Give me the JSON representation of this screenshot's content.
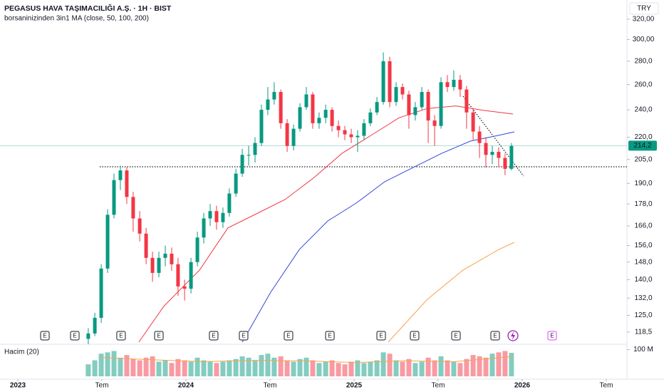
{
  "chart_data": {
    "type": "candlestick",
    "title": "PEGASUS HAVA TAŞIMACILIĞI A.Ş. · 1H · BIST",
    "subtitle": "borsaninizinden 3in1 MA (close, 50, 100, 200)",
    "currency": "TRY",
    "log_scale": true,
    "up_color": "#089981",
    "down_color": "#f23645",
    "xlim": [
      2022.894,
      2026.623
    ],
    "xticks": [
      2023,
      {
        "value": 2023.5,
        "label": "Tem"
      },
      2024,
      {
        "value": 2024.5,
        "label": "Tem"
      },
      2025,
      {
        "value": 2025.5,
        "label": "Tem"
      },
      2026,
      {
        "value": 2026.5,
        "label": "Tem"
      }
    ],
    "ylim": [
      114.8,
      332.5
    ],
    "yticks": [
      {
        "value": 320,
        "label": "320,00"
      },
      {
        "value": 300,
        "label": "300,00"
      },
      {
        "value": 280,
        "label": "280,0"
      },
      {
        "value": 260,
        "label": "260,0"
      },
      {
        "value": 240,
        "label": "240,0"
      },
      {
        "value": 220,
        "label": "220,0"
      },
      {
        "value": 205,
        "label": "205,0"
      },
      {
        "value": 190,
        "label": "190,0"
      },
      {
        "value": 178,
        "label": "178,0"
      },
      {
        "value": 166,
        "label": "166,0"
      },
      {
        "value": 156,
        "label": "156,0"
      },
      {
        "value": 148,
        "label": "148,0"
      },
      {
        "value": 140,
        "label": "140,0"
      },
      {
        "value": 132,
        "label": "132,0"
      },
      {
        "value": 125,
        "label": "125,0"
      },
      {
        "value": 118.5,
        "label": "118,5"
      }
    ],
    "x": [
      2023.419,
      2023.458,
      2023.496,
      2023.534,
      2023.572,
      2023.61,
      2023.648,
      2023.686,
      2023.725,
      2023.763,
      2023.801,
      2023.839,
      2023.877,
      2023.915,
      2023.953,
      2023.992,
      2024.03,
      2024.068,
      2024.106,
      2024.144,
      2024.182,
      2024.22,
      2024.258,
      2024.297,
      2024.335,
      2024.373,
      2024.411,
      2024.449,
      2024.487,
      2024.525,
      2024.564,
      2024.602,
      2024.64,
      2024.678,
      2024.716,
      2024.754,
      2024.792,
      2024.831,
      2024.869,
      2024.907,
      2024.945,
      2024.983,
      2025.021,
      2025.059,
      2025.097,
      2025.136,
      2025.174,
      2025.212,
      2025.25,
      2025.288,
      2025.326,
      2025.364,
      2025.403,
      2025.441,
      2025.479,
      2025.517,
      2025.555,
      2025.593,
      2025.631,
      2025.669,
      2025.708,
      2025.746,
      2025.784,
      2025.822,
      2025.86,
      2025.898,
      2025.936
    ],
    "open": [
      116,
      118,
      124,
      145,
      172,
      192,
      198,
      182,
      170,
      162,
      150,
      143,
      150,
      152,
      147,
      137,
      136,
      148,
      160,
      170,
      174,
      168,
      173,
      184,
      196,
      208,
      208,
      216,
      240,
      248,
      254,
      230,
      214,
      226,
      242,
      252,
      230,
      234,
      240,
      228,
      225,
      222,
      220,
      221,
      230,
      238,
      246,
      280,
      246,
      258,
      252,
      236,
      242,
      254,
      232,
      228,
      262,
      258,
      264,
      256,
      238,
      224,
      216,
      208,
      210,
      206,
      199
    ],
    "high": [
      120,
      126,
      147,
      175,
      196,
      201,
      200,
      185,
      174,
      165,
      153,
      153,
      156,
      155,
      150,
      140,
      150,
      163,
      173,
      178,
      177,
      176,
      187,
      199,
      212,
      214,
      220,
      244,
      258,
      262,
      256,
      233,
      229,
      245,
      258,
      254,
      238,
      244,
      242,
      232,
      228,
      226,
      225,
      233,
      241,
      250,
      288,
      284,
      262,
      261,
      255,
      246,
      258,
      256,
      236,
      266,
      268,
      272,
      268,
      259,
      241,
      228,
      220,
      214,
      213,
      209,
      216
    ],
    "low": [
      114,
      117,
      122,
      143,
      170,
      186,
      178,
      163,
      158,
      147,
      139,
      141,
      146,
      144,
      133,
      131,
      134,
      146,
      157,
      166,
      164,
      165,
      171,
      182,
      194,
      201,
      203,
      214,
      236,
      244,
      226,
      210,
      211,
      224,
      240,
      226,
      226,
      230,
      224,
      220,
      218,
      216,
      210,
      218,
      228,
      236,
      244,
      242,
      243,
      248,
      226,
      232,
      240,
      216,
      214,
      226,
      254,
      255,
      250,
      226,
      218,
      206,
      200,
      202,
      200,
      195,
      198
    ],
    "close": [
      118,
      124,
      145,
      172,
      192,
      198,
      182,
      170,
      162,
      150,
      143,
      150,
      152,
      147,
      137,
      136,
      148,
      160,
      170,
      174,
      168,
      173,
      184,
      196,
      208,
      208,
      216,
      240,
      248,
      254,
      230,
      214,
      226,
      242,
      252,
      230,
      234,
      240,
      228,
      225,
      222,
      220,
      221,
      230,
      238,
      246,
      280,
      246,
      258,
      252,
      236,
      242,
      254,
      232,
      228,
      262,
      258,
      264,
      256,
      238,
      224,
      216,
      208,
      210,
      206,
      199,
      214
    ],
    "moving_averages": [
      {
        "color": "#f23645",
        "x": [
          2023.72,
          2023.869,
          2024.081,
          2024.25,
          2024.419,
          2024.589,
          2024.758,
          2024.928,
          2025.097,
          2025.267,
          2025.436,
          2025.606,
          2025.775,
          2025.945
        ],
        "values": [
          114.8,
          128.7,
          144.3,
          165,
          172.5,
          180.5,
          193.2,
          209,
          221,
          234,
          241,
          243,
          239.5,
          236.8
        ]
      },
      {
        "color": "#3446d4",
        "x": [
          2024.335,
          2024.504,
          2024.674,
          2024.843,
          2025.013,
          2025.182,
          2025.352,
          2025.521,
          2025.691,
          2025.86,
          2025.953
        ],
        "values": [
          114.8,
          134.5,
          154,
          168.6,
          178.5,
          191,
          199.9,
          209,
          217.3,
          221.3,
          223.8
        ]
      },
      {
        "color": "#f7a350",
        "x": [
          2025.203,
          2025.436,
          2025.648,
          2025.86,
          2025.953
        ],
        "values": [
          114.8,
          131.5,
          144.3,
          154,
          157.6
        ]
      }
    ],
    "last_price": {
      "value": 214.2,
      "label": "214,2"
    },
    "support_line": {
      "value": 200.3,
      "x": [
        2023.487,
        2026.623
      ]
    },
    "trendline": {
      "x": [
        2025.648,
        2026.008
      ],
      "values": [
        250.6,
        194.5
      ]
    },
    "event_markers": {
      "label": "E",
      "x": [
        2023.161,
        2023.339,
        2023.614,
        2023.839,
        2024.165,
        2024.343,
        2024.61,
        2024.856,
        2025.161,
        2025.36,
        2025.606,
        2025.839,
        2026.178
      ]
    },
    "volume": {
      "label": "Hacim (20)",
      "ylim": [
        0,
        115
      ],
      "yticks": [
        {
          "value": 100,
          "label": "100 M"
        }
      ],
      "values": [
        45,
        60,
        85,
        90,
        95,
        70,
        80,
        65,
        60,
        70,
        75,
        55,
        60,
        50,
        65,
        60,
        55,
        70,
        60,
        55,
        50,
        55,
        60,
        65,
        75,
        70,
        60,
        80,
        85,
        70,
        75,
        60,
        55,
        65,
        70,
        60,
        50,
        55,
        60,
        50,
        45,
        55,
        60,
        50,
        55,
        60,
        90,
        85,
        60,
        55,
        65,
        50,
        55,
        70,
        60,
        75,
        60,
        55,
        50,
        65,
        80,
        75,
        70,
        85,
        90,
        95,
        88
      ],
      "ma": {
        "color": "#f7a350",
        "x": [
          2023.5,
          2023.8,
          2024.1,
          2024.4,
          2024.7,
          2025.0,
          2025.3,
          2025.6,
          2025.95
        ],
        "values": [
          70,
          62,
          55,
          60,
          58,
          52,
          58,
          55,
          75
        ]
      }
    }
  }
}
